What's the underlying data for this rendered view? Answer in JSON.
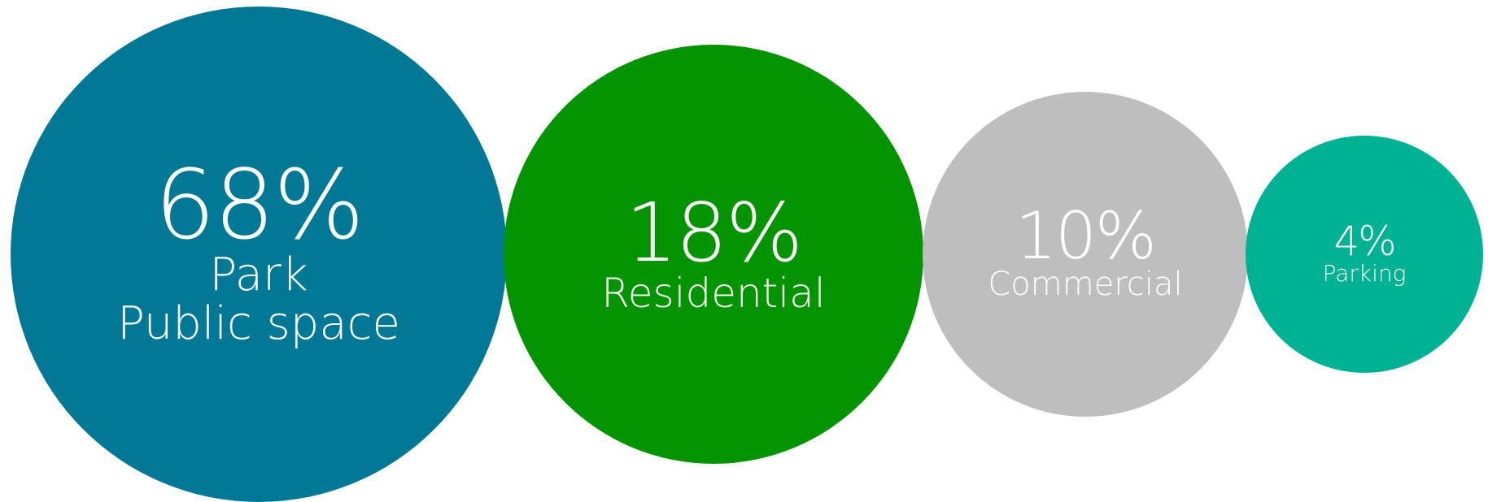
{
  "chart_data": {
    "type": "bubble",
    "categories": [
      "Park\nPublic space",
      "Residential",
      "Commercial",
      "Parking"
    ],
    "values": [
      68,
      18,
      10,
      4
    ],
    "value_labels": [
      "68%",
      "18%",
      "10%",
      "4%"
    ],
    "colors": [
      "#007896",
      "#039400",
      "#BEBEBE",
      "#00B294"
    ]
  }
}
